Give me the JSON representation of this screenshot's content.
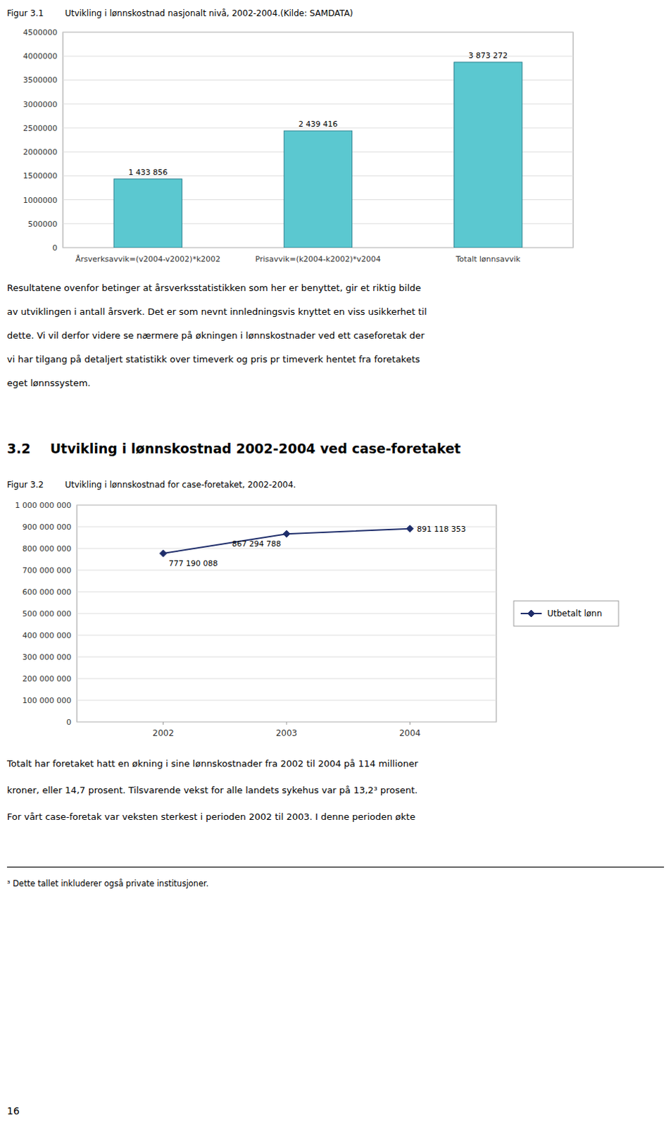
{
  "chart_data": [
    {
      "type": "bar",
      "title": "Figur 3.1        Utvikling i lønnskostnad nasjonalt nivå, 2002-2004.(Kilde: SAMDATA)",
      "categories": [
        "Årsverksavvik=(v2004-v2002)*k2002",
        "Prisavvik=(k2004-k2002)*v2004",
        "Totalt lønnsavvik"
      ],
      "values": [
        1433856,
        2439416,
        3873272
      ],
      "value_labels": [
        "1 433 856",
        "2 439 416",
        "3 873 272"
      ],
      "data_labels": true,
      "color": "#5BC8D0",
      "ylim": [
        0,
        4500000
      ],
      "yticks": [
        0,
        500000,
        1000000,
        1500000,
        2000000,
        2500000,
        3000000,
        3500000,
        4000000,
        4500000
      ],
      "grid": true
    },
    {
      "type": "line",
      "title": "Figur 3.2        Utvikling i lønnskostnad for case-foretaket, 2002-2004.",
      "x": [
        2002,
        2003,
        2004
      ],
      "series": [
        {
          "name": "Utbetalt lønn",
          "color": "#1F2E6B",
          "marker": "diamond",
          "values": [
            777190088,
            867294788,
            891118353
          ],
          "value_labels": [
            "777 190 088",
            "867 294 788",
            "891 118 353"
          ]
        }
      ],
      "data_labels": true,
      "xlim": [
        2001.3,
        2004.7
      ],
      "xticks": [
        2002,
        2003,
        2004
      ],
      "ylim": [
        0,
        1000000000
      ],
      "yticks": [
        0,
        {
          "value": 100000000,
          "label": "100 000 000"
        },
        {
          "value": 200000000,
          "label": "200 000 000"
        },
        {
          "value": 300000000,
          "label": "300 000 000"
        },
        {
          "value": 400000000,
          "label": "400 000 000"
        },
        {
          "value": 500000000,
          "label": "500 000 000"
        },
        {
          "value": 600000000,
          "label": "600 000 000"
        },
        {
          "value": 700000000,
          "label": "700 000 000"
        },
        {
          "value": 800000000,
          "label": "800 000 000"
        },
        {
          "value": 900000000,
          "label": "900 000 000"
        },
        {
          "value": 1000000000,
          "label": "1 000 000 000"
        }
      ],
      "grid": true,
      "legend": "right"
    }
  ],
  "body_text": [
    "Resultatene ovenfor betinger at årsverksstatistikken som her er benyttet, gir et riktig bilde",
    "av utviklingen i antall årsverk. Det er som nevnt innledningsvis knyttet en viss usikkerhet til",
    "dette. Vi vil derfor videre se nærmere på økningen i lønnskostnader ved ett caseforetak der",
    "vi har tilgang på detaljert statistikk over timeverk og pris pr timeverk hentet fra foretakets",
    "eget lønnssystem."
  ],
  "section_number": "3.2",
  "section_title": "Utvikling i lønnskostnad 2002-2004 ved case-foretaket",
  "footer_text": [
    "Totalt har foretaket hatt en økning i sine lønnskostnader fra 2002 til 2004 på 114 millioner",
    "kroner, eller 14,7 prosent. Tilsvarende vekst for alle landets sykehus var på 13,2³ prosent.",
    "For vårt case-foretak var veksten sterkest i perioden 2002 til 2003. I denne perioden økte"
  ],
  "footnote": "³ Dette tallet inkluderer også private institusjoner.",
  "page_number": "16"
}
